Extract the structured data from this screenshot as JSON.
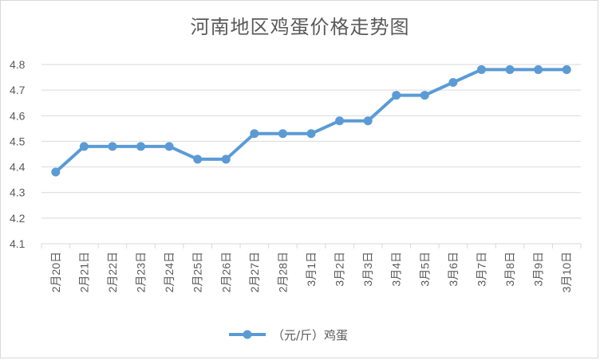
{
  "chart_data": {
    "type": "line",
    "title": "河南地区鸡蛋价格走势图",
    "xlabel": "",
    "ylabel": "",
    "ylim": [
      4.1,
      4.8
    ],
    "yticks": [
      "4.1",
      "4.2",
      "4.3",
      "4.4",
      "4.5",
      "4.6",
      "4.7",
      "4.8"
    ],
    "grid": true,
    "legend_position": "bottom",
    "categories": [
      "2月20日",
      "2月21日",
      "2月22日",
      "2月23日",
      "2月24日",
      "2月25日",
      "2月26日",
      "2月27日",
      "2月28日",
      "3月1日",
      "3月2日",
      "3月3日",
      "3月4日",
      "3月5日",
      "3月6日",
      "3月7日",
      "3月8日",
      "3月9日",
      "3月10日"
    ],
    "series": [
      {
        "name": "（元/斤）鸡蛋",
        "color": "#5b9bd5",
        "values": [
          4.38,
          4.48,
          4.48,
          4.48,
          4.48,
          4.43,
          4.43,
          4.53,
          4.53,
          4.53,
          4.58,
          4.58,
          4.68,
          4.68,
          4.73,
          4.78,
          4.78,
          4.78,
          4.78
        ]
      }
    ]
  }
}
